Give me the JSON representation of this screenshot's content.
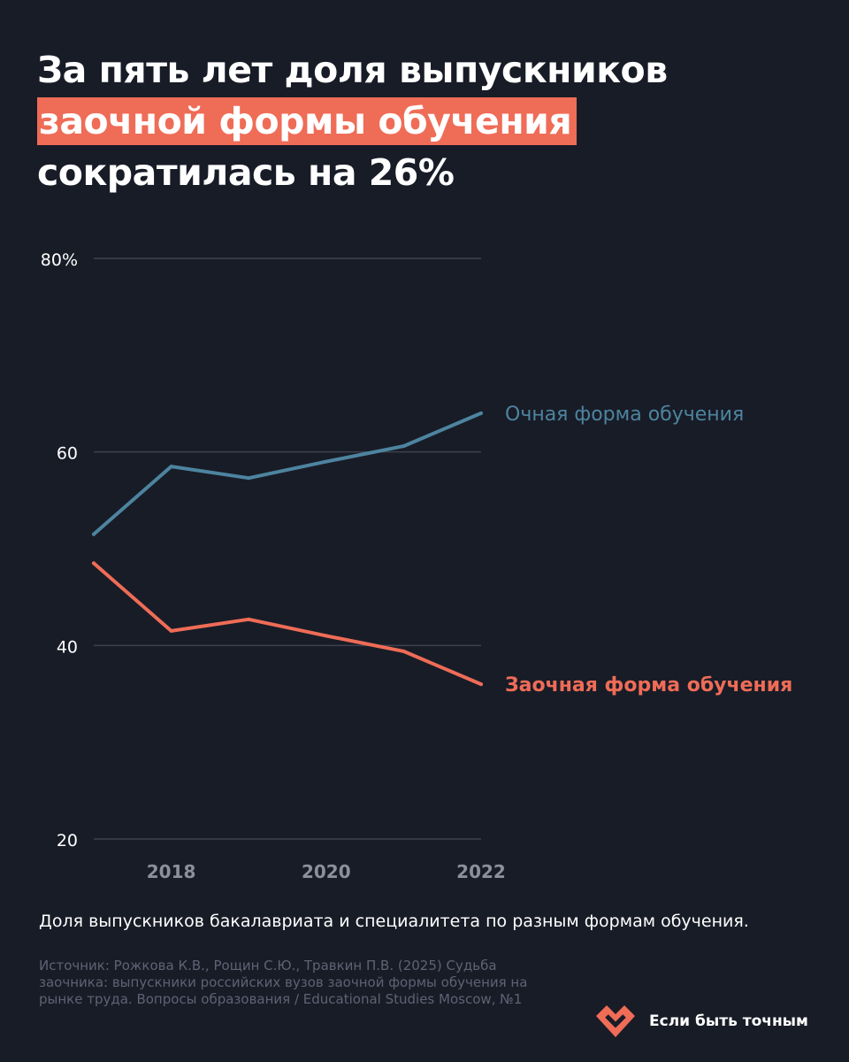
{
  "headline": {
    "line1": "За пять лет доля выпускников",
    "line2_highlight": "заочной формы обучения",
    "line3": "сократилась на 26%"
  },
  "chart_data": {
    "type": "line",
    "x": [
      2017,
      2018,
      2019,
      2020,
      2021,
      2022
    ],
    "xticks": [
      "2018",
      "2020",
      "2022"
    ],
    "ylim": [
      20,
      80
    ],
    "yticks": [
      "20",
      "40",
      "60",
      "80%"
    ],
    "grid": true,
    "series": [
      {
        "name": "Очная форма обучения",
        "values": [
          51.5,
          58.5,
          57.3,
          59.0,
          60.6,
          64.0
        ],
        "color": "#4d849f"
      },
      {
        "name": "Заочная форма обучения",
        "values": [
          48.5,
          41.5,
          42.7,
          41.0,
          39.4,
          36.0
        ],
        "color": "#ef6c57"
      }
    ]
  },
  "description": "Доля выпускников бакалавриата и специалитета по разным формам обучения.",
  "source": "Источник: Рожкова К.В., Рощин С.Ю., Травкин П.В. (2025) Судьба заочника: выпускники российских вузов заочной формы обучения на рынке труда. Вопросы образования / Educational Studies Moscow, №1",
  "brand": {
    "name": "Если быть точным",
    "logo_icon": "heart-logo-icon"
  },
  "colors": {
    "background": "#181c27",
    "accent": "#ef6c57",
    "secondary": "#4d849f",
    "grid": "#3c414e"
  }
}
